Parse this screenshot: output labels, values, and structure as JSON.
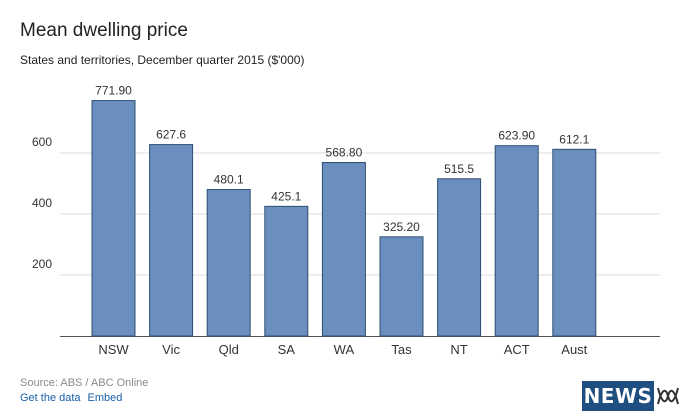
{
  "chart_data": {
    "type": "bar",
    "title": "Mean dwelling price",
    "subtitle": "States and territories, December quarter 2015 ($'000)",
    "categories": [
      "NSW",
      "Vic",
      "Qld",
      "SA",
      "WA",
      "Tas",
      "NT",
      "ACT",
      "Aust"
    ],
    "values": [
      771.9,
      627.6,
      480.1,
      425.1,
      568.8,
      325.2,
      515.5,
      623.9,
      612.1
    ],
    "value_labels": [
      "771.90",
      "627.6",
      "480.1",
      "425.1",
      "568.80",
      "325.20",
      "515.5",
      "623.90",
      "612.1"
    ],
    "y_ticks": [
      200,
      400,
      600
    ],
    "ylim": [
      0,
      800
    ],
    "grid": true,
    "legend": "none",
    "colors": {
      "bar": "#6a8fbe",
      "bar_edge": "#2f4f73",
      "grid": "#dddddd",
      "axis": "#555555"
    }
  },
  "footer": {
    "source": "Source: ABS / ABC Online",
    "get_data": "Get the data",
    "embed": "Embed"
  },
  "logo": {
    "text": "NEWS",
    "icon": "abc-lissajous-icon",
    "colors": {
      "background": "#1f4e80",
      "text": "#ffffff"
    }
  }
}
